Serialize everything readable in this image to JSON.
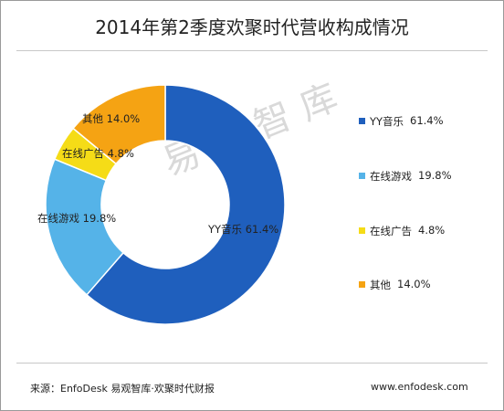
{
  "title": "2014年第2季度欢聚时代营收构成情况",
  "watermark": "易观智库",
  "footer": {
    "source": "来源：EnfoDesk 易观智库·欢聚时代财报",
    "site": "www.enfodesk.com"
  },
  "chart_data": {
    "type": "pie",
    "donut": true,
    "title": "2014年第2季度欢聚时代营收构成情况",
    "legend_position": "right",
    "slices": [
      {
        "name": "YY音乐",
        "value": 61.4,
        "label": "61.4%",
        "color": "#1f5fbd"
      },
      {
        "name": "在线游戏",
        "value": 19.8,
        "label": "19.8%",
        "color": "#55b3e8"
      },
      {
        "name": "在线广告",
        "value": 4.8,
        "label": "4.8%",
        "color": "#f5dc17"
      },
      {
        "name": "其他",
        "value": 14.0,
        "label": "14.0%",
        "color": "#f5a313"
      }
    ]
  }
}
